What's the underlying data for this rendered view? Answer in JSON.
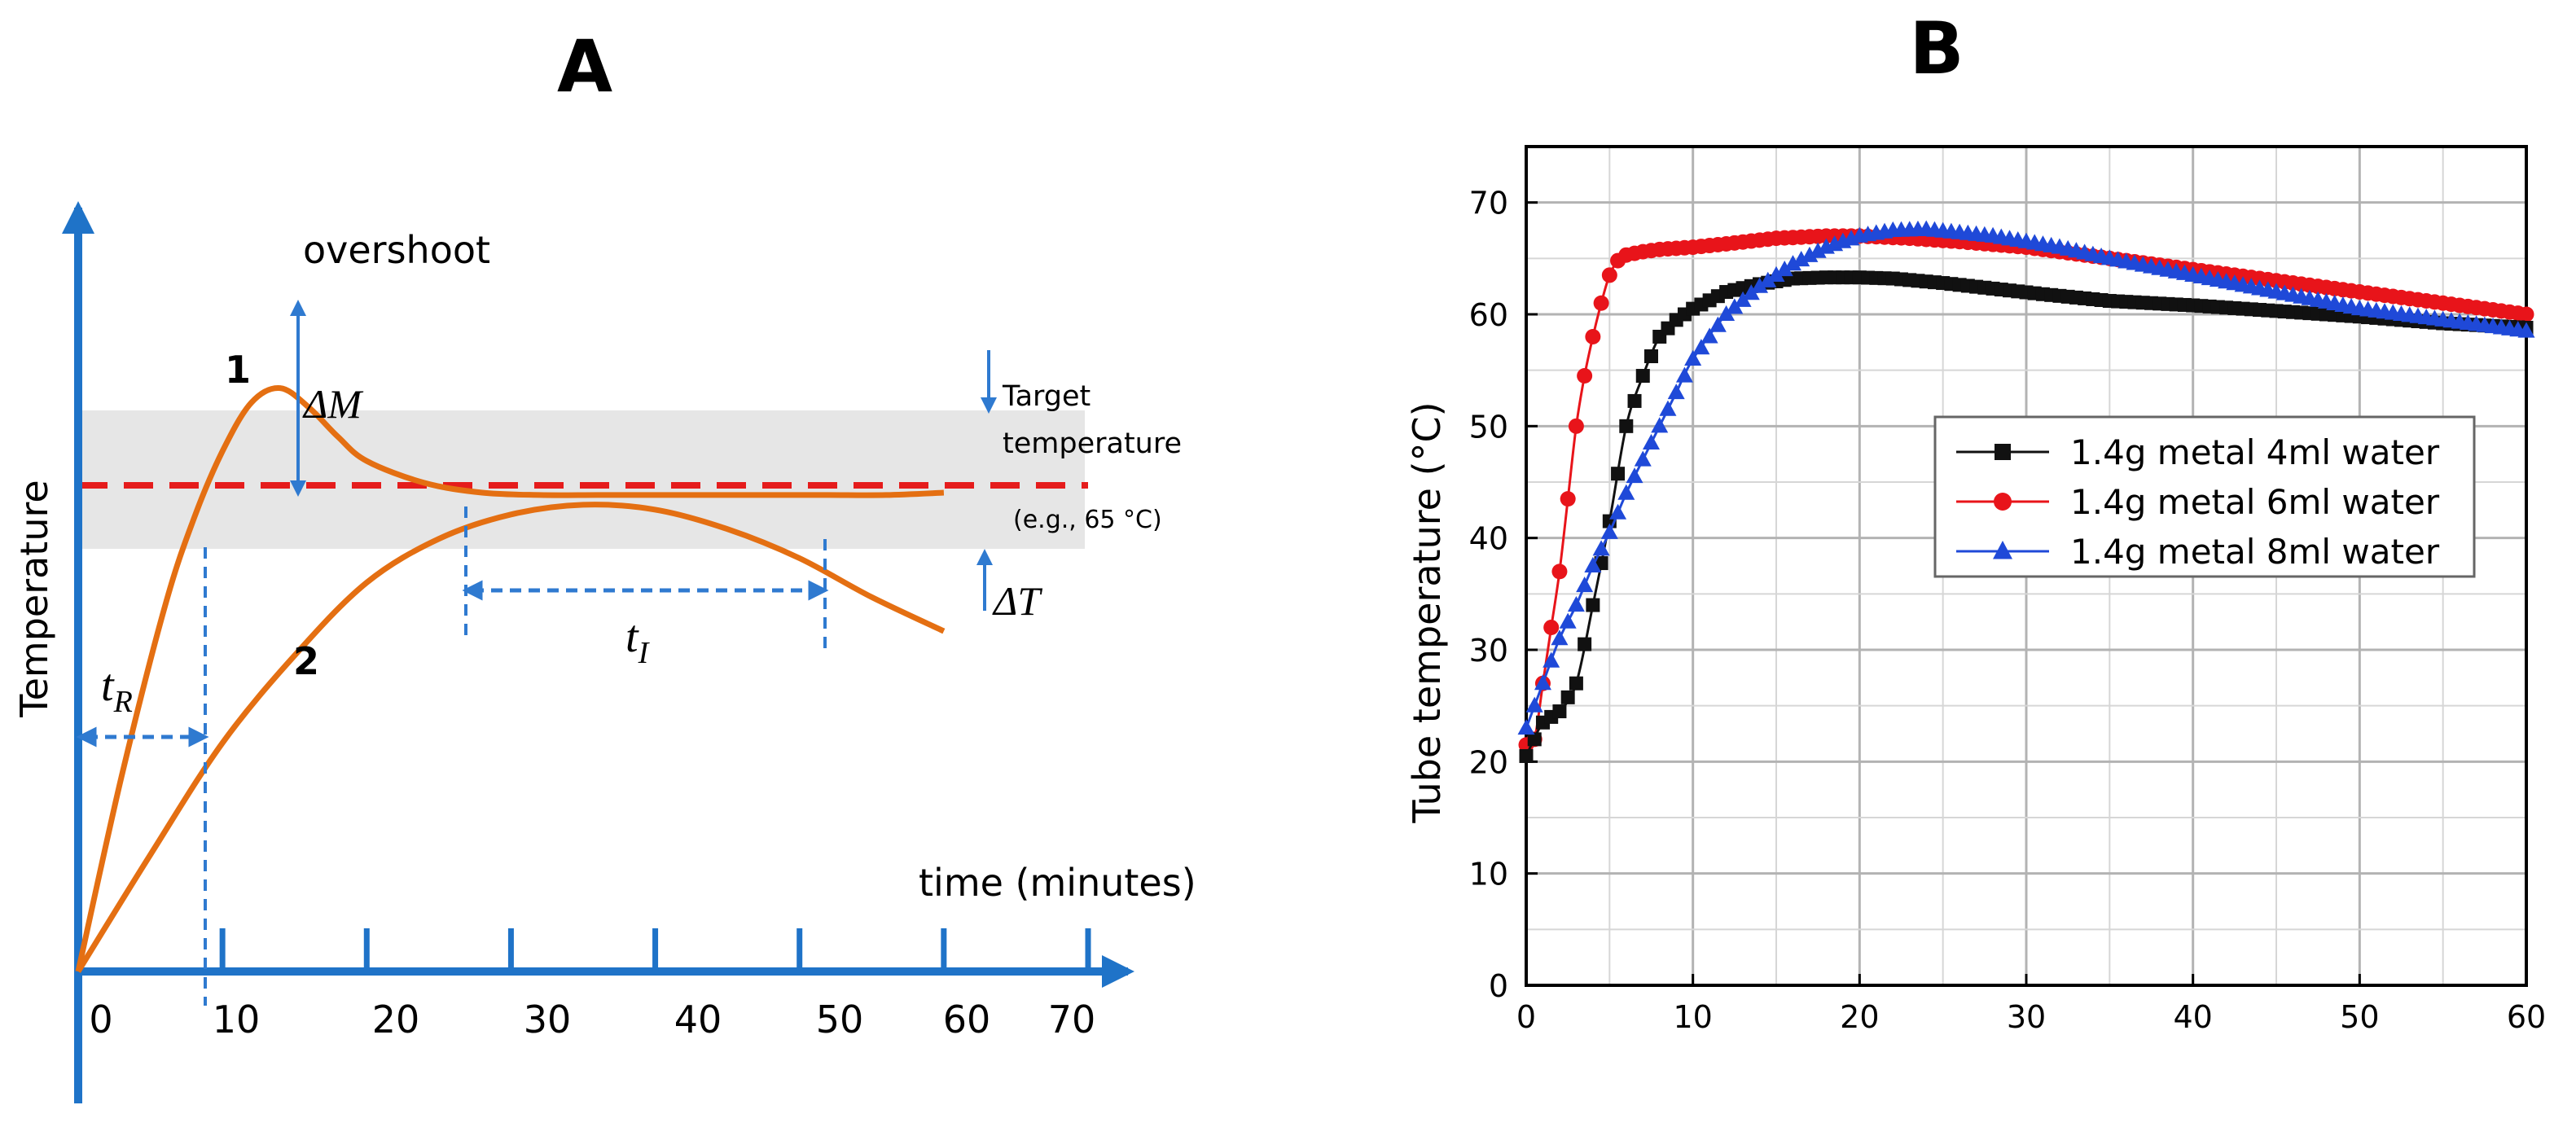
{
  "chart_data": [
    {
      "panel": "A",
      "type": "line",
      "title": "A",
      "xlabel": "time (minutes)",
      "ylabel": "Temperature",
      "x_ticks": [
        "0",
        "10",
        "20",
        "30",
        "40",
        "50",
        "60",
        "70"
      ],
      "xlim": [
        0,
        70
      ],
      "target_band_label": [
        "Target",
        "temperature"
      ],
      "target_example": "(e.g., 65 °C)",
      "overshoot_label": "overshoot",
      "delta_m_label": "ΔM",
      "delta_t_label": "ΔT",
      "t_r_label": "t",
      "t_r_sub": "R",
      "t_i_label": "t",
      "t_i_sub": "I",
      "series": [
        {
          "name": "1",
          "x": [
            0,
            3,
            6,
            8,
            10,
            12,
            14,
            16,
            18,
            20,
            24,
            28,
            32,
            36,
            40,
            44,
            48,
            52,
            56,
            60
          ],
          "values": [
            0,
            0.4,
            0.75,
            0.93,
            1.07,
            1.17,
            1.2,
            1.16,
            1.1,
            1.05,
            1.005,
            0.985,
            0.98,
            0.98,
            0.98,
            0.98,
            0.98,
            0.98,
            0.98,
            0.985
          ]
        },
        {
          "name": "2",
          "x": [
            0,
            5,
            10,
            15,
            20,
            25,
            30,
            35,
            40,
            45,
            50,
            55,
            60
          ],
          "values": [
            0,
            0.24,
            0.47,
            0.65,
            0.8,
            0.89,
            0.94,
            0.96,
            0.95,
            0.91,
            0.85,
            0.77,
            0.7
          ]
        }
      ]
    },
    {
      "panel": "B",
      "type": "scatter",
      "title": "B",
      "xlabel": "",
      "ylabel": "Tube temperature (°C)",
      "xlim": [
        0,
        60
      ],
      "ylim": [
        0,
        75
      ],
      "x_ticks": [
        "0",
        "10",
        "20",
        "30",
        "40",
        "50",
        "60"
      ],
      "y_ticks": [
        "0",
        "10",
        "20",
        "30",
        "40",
        "50",
        "60",
        "70"
      ],
      "grid": true,
      "legend_position": "center-right",
      "series": [
        {
          "name": "1.4g metal 4ml water",
          "marker": "square",
          "color": "#111111",
          "x": [
            0,
            1,
            2,
            3,
            4,
            5,
            6,
            7,
            8,
            9,
            10,
            12,
            14,
            16,
            18,
            20,
            22,
            25,
            28,
            31,
            35,
            40,
            45,
            50,
            55,
            60
          ],
          "values": [
            20.5,
            23.5,
            24.5,
            27,
            34,
            41.5,
            50,
            54.5,
            58,
            59.5,
            60.5,
            62,
            62.7,
            63.2,
            63.3,
            63.3,
            63.2,
            62.8,
            62.3,
            61.8,
            61.2,
            60.8,
            60.3,
            59.8,
            59.2,
            58.8
          ]
        },
        {
          "name": "1.4g metal 6ml water",
          "marker": "circle",
          "color": "#e8141a",
          "x": [
            0,
            0.5,
            1,
            1.5,
            2,
            2.5,
            3,
            3.5,
            4,
            4.5,
            5,
            5.5,
            6,
            7,
            8,
            10,
            12,
            15,
            18,
            20,
            23,
            26,
            30,
            35,
            40,
            45,
            50,
            55,
            60
          ],
          "values": [
            21.5,
            22,
            27,
            32,
            37,
            43.5,
            50,
            54.5,
            58,
            61,
            63.5,
            64.8,
            65.3,
            65.6,
            65.8,
            66,
            66.3,
            66.8,
            67,
            67,
            66.8,
            66.5,
            66,
            65,
            64,
            63,
            62,
            61,
            60
          ]
        },
        {
          "name": "1.4g metal 8ml water",
          "marker": "triangle",
          "color": "#1f49d8",
          "x": [
            0,
            1,
            2,
            3,
            4,
            5,
            6,
            7,
            8,
            9,
            10,
            12,
            14,
            16,
            18,
            20,
            22,
            24,
            26,
            28,
            30,
            32,
            35,
            40,
            45,
            50,
            55,
            60
          ],
          "values": [
            23,
            27,
            31,
            34,
            37.5,
            40.5,
            44,
            47,
            50,
            53,
            56,
            60,
            62.5,
            64.5,
            66,
            67,
            67.5,
            67.6,
            67.3,
            67,
            66.5,
            66,
            65,
            63.5,
            62,
            60.5,
            59.5,
            58.5
          ]
        }
      ]
    }
  ]
}
